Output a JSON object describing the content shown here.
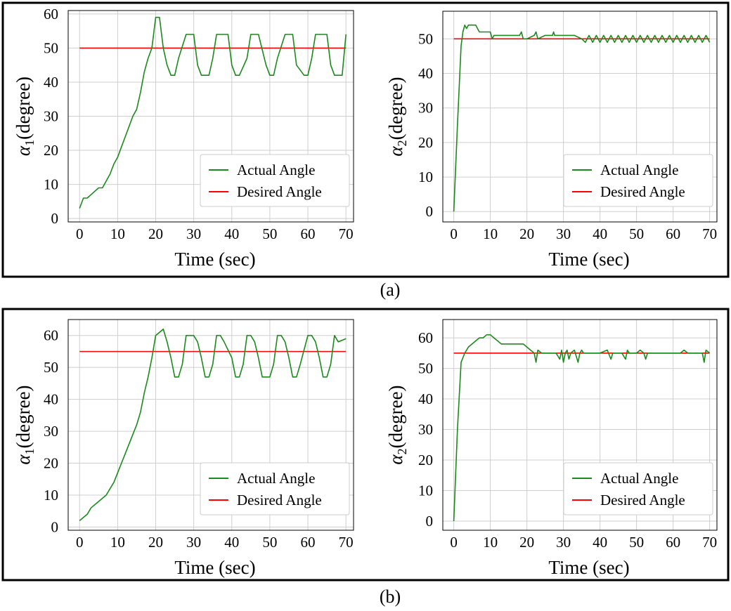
{
  "figure": {
    "panels": [
      {
        "caption": "(a)"
      },
      {
        "caption": "(b)"
      }
    ],
    "colors": {
      "actual": "#1a8a1a",
      "desired": "#ff0000",
      "grid": "#cfcfcf"
    }
  },
  "chart_data": [
    {
      "type": "line",
      "panel": "(a)",
      "xlabel": "Time (sec)",
      "ylabel_symbol": "α",
      "ylabel_sub": "1",
      "ylabel_rest": "(degree)",
      "xlim": [
        -3,
        72
      ],
      "ylim": [
        -1,
        61
      ],
      "xticks": [
        0,
        10,
        20,
        30,
        40,
        50,
        60,
        70
      ],
      "yticks": [
        0,
        10,
        20,
        30,
        40,
        50,
        60
      ],
      "legend_position": "lower-right",
      "series": [
        {
          "name": "Actual Angle",
          "color": "#1a8a1a",
          "x": [
            0,
            1,
            2,
            3,
            4,
            5,
            6,
            7,
            8,
            9,
            10,
            11,
            12,
            13,
            14,
            15,
            16,
            17,
            18,
            19,
            20,
            20.5,
            21,
            22,
            23,
            24,
            25,
            26,
            28,
            29,
            30,
            31,
            32,
            34,
            35,
            36,
            37,
            39,
            40,
            41,
            42,
            44,
            45,
            46,
            47,
            49,
            50,
            51,
            52,
            54,
            55,
            56,
            57,
            59,
            60,
            61,
            62,
            64,
            65,
            66,
            67,
            69,
            70
          ],
          "y": [
            3,
            6,
            6,
            7,
            8,
            9,
            9,
            11,
            13,
            16,
            18,
            21,
            24,
            27,
            30,
            32,
            37,
            43,
            47,
            50,
            59,
            59,
            59,
            50,
            45,
            42,
            42,
            47,
            54,
            54,
            54,
            45,
            42,
            42,
            47,
            54,
            54,
            54,
            45,
            42,
            42,
            47,
            54,
            54,
            54,
            45,
            42,
            42,
            47,
            54,
            54,
            54,
            45,
            42,
            42,
            47,
            54,
            54,
            54,
            45,
            42,
            42,
            54
          ]
        },
        {
          "name": "Desired Angle",
          "color": "#ff0000",
          "x": [
            0,
            70
          ],
          "y": [
            50,
            50
          ]
        }
      ]
    },
    {
      "type": "line",
      "panel": "(a)",
      "xlabel": "Time (sec)",
      "ylabel_symbol": "α",
      "ylabel_sub": "2",
      "ylabel_rest": "(degree)",
      "xlim": [
        -3,
        72
      ],
      "ylim": [
        -3,
        58
      ],
      "xticks": [
        0,
        10,
        20,
        30,
        40,
        50,
        60,
        70
      ],
      "yticks": [
        0,
        10,
        20,
        30,
        40,
        50
      ],
      "legend_position": "lower-right",
      "series": [
        {
          "name": "Actual Angle",
          "color": "#1a8a1a",
          "x": [
            0,
            1,
            2,
            2.5,
            3,
            3.5,
            4,
            5,
            6,
            7,
            8,
            9,
            10,
            10.5,
            11,
            12,
            14,
            16,
            18,
            18.5,
            19,
            20,
            22,
            22.5,
            23,
            25,
            27,
            27.3,
            27.6,
            30,
            33,
            35,
            36,
            37,
            38,
            39,
            40,
            41,
            42,
            43,
            44,
            45,
            46,
            47,
            48,
            49,
            50,
            51,
            52,
            53,
            54,
            55,
            56,
            57,
            58,
            59,
            60,
            61,
            62,
            63,
            64,
            65,
            66,
            67,
            68,
            69,
            70
          ],
          "y": [
            0,
            25,
            48,
            52,
            54,
            53,
            54,
            54,
            54,
            52,
            52,
            52,
            52,
            50,
            51,
            51,
            51,
            51,
            51,
            52,
            50,
            50,
            51,
            52,
            50,
            51,
            51,
            52,
            51,
            51,
            51,
            50,
            49,
            51,
            49,
            51,
            49,
            51,
            49,
            51,
            49,
            51,
            49,
            51,
            49,
            51,
            49,
            51,
            49,
            51,
            49,
            51,
            49,
            51,
            49,
            51,
            49,
            51,
            49,
            51,
            49,
            51,
            49,
            51,
            49,
            51,
            49
          ]
        },
        {
          "name": "Desired Angle",
          "color": "#ff0000",
          "x": [
            0,
            70
          ],
          "y": [
            50,
            50
          ]
        }
      ]
    },
    {
      "type": "line",
      "panel": "(b)",
      "xlabel": "Time (sec)",
      "ylabel_symbol": "α",
      "ylabel_sub": "1",
      "ylabel_rest": "(degree)",
      "xlim": [
        -3,
        72
      ],
      "ylim": [
        -1,
        65
      ],
      "xticks": [
        0,
        10,
        20,
        30,
        40,
        50,
        60,
        70
      ],
      "yticks": [
        0,
        10,
        20,
        30,
        40,
        50,
        60
      ],
      "legend_position": "lower-right",
      "series": [
        {
          "name": "Actual Angle",
          "color": "#1a8a1a",
          "x": [
            0,
            1,
            2,
            3,
            4,
            5,
            6,
            7,
            8,
            9,
            10,
            11,
            12,
            13,
            14,
            15,
            16,
            17,
            18,
            19,
            20,
            21,
            22,
            23,
            24,
            25,
            26,
            27,
            28,
            30,
            31,
            32,
            33,
            34,
            35,
            36,
            37,
            38,
            40,
            41,
            42,
            43,
            44,
            45,
            46,
            47,
            48,
            50,
            51,
            52,
            53,
            54,
            55,
            56,
            57,
            58,
            60,
            61,
            62,
            63,
            64,
            65,
            66,
            67,
            68,
            70
          ],
          "y": [
            2,
            3,
            4,
            6,
            7,
            8,
            9,
            10,
            12,
            14,
            17,
            20,
            23,
            26,
            29,
            32,
            36,
            42,
            47,
            53,
            60,
            61,
            62,
            58,
            53,
            47,
            47,
            51,
            60,
            60,
            58,
            53,
            47,
            47,
            51,
            60,
            60,
            58,
            53,
            47,
            47,
            51,
            60,
            60,
            58,
            53,
            47,
            47,
            51,
            60,
            60,
            58,
            53,
            47,
            47,
            51,
            60,
            60,
            58,
            53,
            47,
            47,
            51,
            60,
            58,
            59
          ]
        },
        {
          "name": "Desired Angle",
          "color": "#ff0000",
          "x": [
            0,
            70
          ],
          "y": [
            55,
            55
          ]
        }
      ]
    },
    {
      "type": "line",
      "panel": "(b)",
      "xlabel": "Time (sec)",
      "ylabel_symbol": "α",
      "ylabel_sub": "2",
      "ylabel_rest": "(degree)",
      "xlim": [
        -3,
        72
      ],
      "ylim": [
        -3,
        66
      ],
      "xticks": [
        0,
        10,
        20,
        30,
        40,
        50,
        60,
        70
      ],
      "yticks": [
        0,
        10,
        20,
        30,
        40,
        50,
        60
      ],
      "legend_position": "lower-right",
      "series": [
        {
          "name": "Actual Angle",
          "color": "#1a8a1a",
          "x": [
            0,
            1,
            2,
            3,
            4,
            5,
            6,
            7,
            8,
            9,
            10,
            11,
            12,
            13,
            14,
            15,
            16,
            17,
            18,
            19,
            20,
            21,
            22,
            22.5,
            23,
            24,
            26,
            28,
            29,
            29.5,
            30,
            30.5,
            31,
            31.5,
            32,
            33,
            34,
            34.5,
            35,
            35.5,
            36,
            37,
            38,
            40,
            42,
            43,
            43.5,
            44,
            46,
            47,
            47.5,
            48,
            50,
            51,
            52,
            52.5,
            53,
            54,
            56,
            58,
            60,
            62,
            63,
            64,
            65,
            66,
            67,
            68,
            68.5,
            69,
            70
          ],
          "y": [
            0,
            30,
            52,
            55,
            57,
            58,
            59,
            60,
            60,
            61,
            61,
            60,
            59,
            58,
            58,
            58,
            58,
            58,
            58,
            58,
            57,
            56,
            55,
            52,
            56,
            55,
            55,
            55,
            53,
            56,
            52,
            55,
            56,
            53,
            55,
            56,
            52,
            55,
            56,
            55,
            55,
            55,
            55,
            55,
            56,
            53,
            55,
            55,
            55,
            53,
            56,
            55,
            55,
            56,
            55,
            53,
            55,
            55,
            55,
            55,
            55,
            55,
            56,
            55,
            55,
            55,
            55,
            55,
            52,
            56,
            55
          ]
        },
        {
          "name": "Desired Angle",
          "color": "#ff0000",
          "x": [
            0,
            70
          ],
          "y": [
            55,
            55
          ]
        }
      ]
    }
  ]
}
